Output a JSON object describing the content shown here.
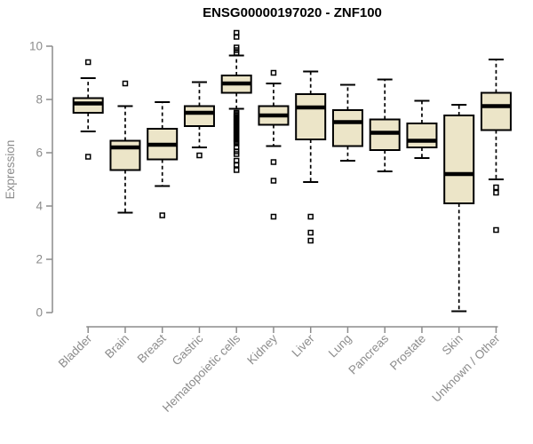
{
  "chart_data": {
    "type": "boxplot",
    "title": "ENSG00000197020 - ZNF100",
    "ylabel": "Expression",
    "xlabel": "",
    "ylim": [
      0,
      10
    ],
    "yticks": [
      0,
      2,
      4,
      6,
      8,
      10
    ],
    "grid": false,
    "legend": "none",
    "categories": [
      "Bladder",
      "Brain",
      "Breast",
      "Gastric",
      "Hematopoietic cells",
      "Kidney",
      "Liver",
      "Lung",
      "Pancreas",
      "Prostate",
      "Skin",
      "Unknown / Other"
    ],
    "boxes": [
      {
        "category": "Bladder",
        "whisker_low": 6.8,
        "q1": 7.5,
        "median": 7.85,
        "q3": 8.05,
        "whisker_high": 8.8,
        "outliers": [
          9.4,
          5.85
        ]
      },
      {
        "category": "Brain",
        "whisker_low": 3.75,
        "q1": 5.35,
        "median": 6.2,
        "q3": 6.45,
        "whisker_high": 7.75,
        "outliers": [
          8.6
        ]
      },
      {
        "category": "Breast",
        "whisker_low": 4.75,
        "q1": 5.75,
        "median": 6.3,
        "q3": 6.9,
        "whisker_high": 7.9,
        "outliers": [
          3.65
        ]
      },
      {
        "category": "Gastric",
        "whisker_low": 6.2,
        "q1": 7.0,
        "median": 7.5,
        "q3": 7.75,
        "whisker_high": 8.65,
        "outliers": [
          5.9
        ]
      },
      {
        "category": "Hematopoietic cells",
        "whisker_low": 7.65,
        "q1": 8.25,
        "median": 8.6,
        "q3": 8.9,
        "whisker_high": 9.65,
        "outliers": [
          10.5,
          10.35,
          9.95,
          9.85,
          9.75,
          7.5,
          7.45,
          7.4,
          7.35,
          7.3,
          7.25,
          7.2,
          7.15,
          7.1,
          7.05,
          7.0,
          6.95,
          6.9,
          6.85,
          6.8,
          6.75,
          6.7,
          6.65,
          6.6,
          6.55,
          6.5,
          6.45,
          6.4,
          6.35,
          6.2,
          6.05,
          5.95,
          5.7,
          5.55,
          5.35
        ]
      },
      {
        "category": "Kidney",
        "whisker_low": 6.25,
        "q1": 7.05,
        "median": 7.4,
        "q3": 7.75,
        "whisker_high": 8.6,
        "outliers": [
          9.0,
          5.65,
          4.95,
          3.6
        ]
      },
      {
        "category": "Liver",
        "whisker_low": 4.9,
        "q1": 6.5,
        "median": 7.7,
        "q3": 8.2,
        "whisker_high": 9.05,
        "outliers": [
          3.6,
          3.0,
          2.7
        ]
      },
      {
        "category": "Lung",
        "whisker_low": 5.7,
        "q1": 6.25,
        "median": 7.15,
        "q3": 7.6,
        "whisker_high": 8.55,
        "outliers": []
      },
      {
        "category": "Pancreas",
        "whisker_low": 5.3,
        "q1": 6.1,
        "median": 6.75,
        "q3": 7.25,
        "whisker_high": 8.75,
        "outliers": []
      },
      {
        "category": "Prostate",
        "whisker_low": 5.8,
        "q1": 6.2,
        "median": 6.45,
        "q3": 7.1,
        "whisker_high": 7.95,
        "outliers": []
      },
      {
        "category": "Skin",
        "whisker_low": 0.05,
        "q1": 4.1,
        "median": 5.2,
        "q3": 7.4,
        "whisker_high": 7.8,
        "outliers": []
      },
      {
        "category": "Unknown / Other",
        "whisker_low": 5.0,
        "q1": 6.85,
        "median": 7.75,
        "q3": 8.25,
        "whisker_high": 9.5,
        "outliers": [
          4.7,
          4.5,
          3.1
        ]
      }
    ],
    "colors": {
      "box_fill": "#ECE5C8",
      "box_stroke": "#000000",
      "median": "#000000",
      "whisker": "#000000",
      "axis": "#8C8C8C",
      "title": "#000000"
    }
  }
}
